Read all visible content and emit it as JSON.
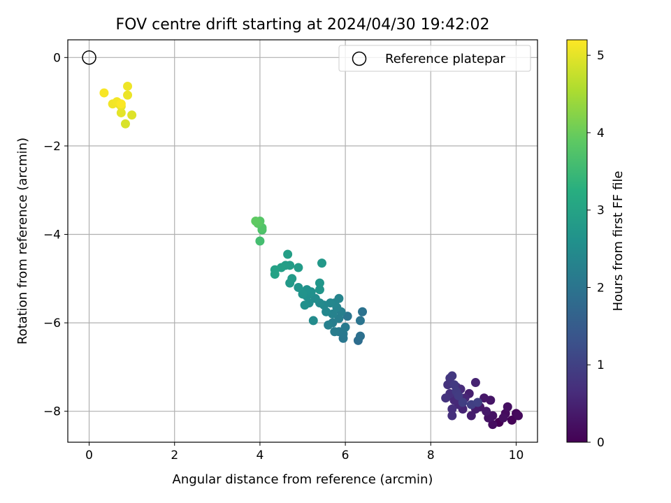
{
  "chart_data": {
    "type": "scatter",
    "title": "FOV centre drift starting at 2024/04/30 19:42:02",
    "xlabel": "Angular distance from reference (arcmin)",
    "ylabel": "Rotation from reference (arcmin)",
    "xlim": [
      -0.5,
      10.5
    ],
    "ylim": [
      -8.7,
      0.4
    ],
    "xticks": [
      0,
      2,
      4,
      6,
      8,
      10
    ],
    "yticks": [
      0,
      -2,
      -4,
      -6,
      -8
    ],
    "xtick_labels": [
      "0",
      "2",
      "4",
      "6",
      "8",
      "10"
    ],
    "ytick_labels": [
      "0",
      "−2",
      "−4",
      "−6",
      "−8"
    ],
    "grid": true,
    "colormap": "viridis",
    "colorbar": {
      "label": "Hours from first FF file",
      "range": [
        0,
        5.2
      ],
      "ticks": [
        0,
        1,
        2,
        3,
        4,
        5
      ],
      "tick_labels": [
        "0",
        "1",
        "2",
        "3",
        "4",
        "5"
      ]
    },
    "reference": {
      "x": 0,
      "y": 0,
      "legend_label": "Reference platepar",
      "marker": "open-circle",
      "color": "#000000"
    },
    "legend_position": "upper right",
    "series": [
      {
        "points": [
          {
            "x": 9.6,
            "y": -8.25,
            "t": 0.0
          },
          {
            "x": 9.9,
            "y": -8.2,
            "t": 0.05
          },
          {
            "x": 10.0,
            "y": -8.05,
            "t": 0.1
          },
          {
            "x": 10.05,
            "y": -8.1,
            "t": 0.13
          },
          {
            "x": 9.75,
            "y": -8.05,
            "t": 0.15
          },
          {
            "x": 9.45,
            "y": -8.3,
            "t": 0.18
          },
          {
            "x": 9.7,
            "y": -8.15,
            "t": 0.2
          },
          {
            "x": 9.8,
            "y": -7.9,
            "t": 0.22
          },
          {
            "x": 9.45,
            "y": -8.1,
            "t": 0.25
          },
          {
            "x": 9.35,
            "y": -8.15,
            "t": 0.27
          },
          {
            "x": 9.4,
            "y": -7.75,
            "t": 0.3
          },
          {
            "x": 9.25,
            "y": -7.7,
            "t": 0.33
          },
          {
            "x": 9.15,
            "y": -7.9,
            "t": 0.35
          },
          {
            "x": 9.3,
            "y": -8.0,
            "t": 0.37
          },
          {
            "x": 9.05,
            "y": -7.95,
            "t": 0.4
          },
          {
            "x": 8.95,
            "y": -8.1,
            "t": 0.42
          },
          {
            "x": 8.9,
            "y": -7.6,
            "t": 0.45
          },
          {
            "x": 9.05,
            "y": -7.35,
            "t": 0.5
          },
          {
            "x": 8.75,
            "y": -7.95,
            "t": 0.52
          },
          {
            "x": 8.8,
            "y": -7.7,
            "t": 0.55
          },
          {
            "x": 8.65,
            "y": -7.85,
            "t": 0.58
          },
          {
            "x": 8.55,
            "y": -7.75,
            "t": 0.6
          },
          {
            "x": 8.7,
            "y": -7.5,
            "t": 0.63
          },
          {
            "x": 8.6,
            "y": -7.45,
            "t": 0.65
          },
          {
            "x": 8.5,
            "y": -7.95,
            "t": 0.68
          },
          {
            "x": 8.5,
            "y": -8.1,
            "t": 0.7
          },
          {
            "x": 8.45,
            "y": -7.6,
            "t": 0.72
          },
          {
            "x": 8.4,
            "y": -7.4,
            "t": 0.75
          },
          {
            "x": 8.35,
            "y": -7.7,
            "t": 0.78
          },
          {
            "x": 8.45,
            "y": -7.25,
            "t": 0.8
          },
          {
            "x": 8.5,
            "y": -7.2,
            "t": 0.85
          },
          {
            "x": 8.55,
            "y": -7.4,
            "t": 0.88
          },
          {
            "x": 8.6,
            "y": -7.55,
            "t": 0.9
          },
          {
            "x": 8.65,
            "y": -7.65,
            "t": 0.92
          },
          {
            "x": 8.75,
            "y": -7.8,
            "t": 0.95
          },
          {
            "x": 8.95,
            "y": -7.85,
            "t": 0.97
          },
          {
            "x": 9.1,
            "y": -7.8,
            "t": 1.0
          },
          {
            "x": 6.3,
            "y": -6.4,
            "t": 1.85
          },
          {
            "x": 6.35,
            "y": -6.3,
            "t": 1.9
          },
          {
            "x": 6.4,
            "y": -5.75,
            "t": 1.95
          },
          {
            "x": 6.35,
            "y": -5.95,
            "t": 2.0
          },
          {
            "x": 6.05,
            "y": -5.85,
            "t": 2.02
          },
          {
            "x": 5.95,
            "y": -6.35,
            "t": 2.05
          },
          {
            "x": 5.95,
            "y": -6.25,
            "t": 2.08
          },
          {
            "x": 5.85,
            "y": -6.2,
            "t": 2.1
          },
          {
            "x": 6.0,
            "y": -6.1,
            "t": 2.12
          },
          {
            "x": 5.75,
            "y": -6.2,
            "t": 2.15
          },
          {
            "x": 5.7,
            "y": -6.0,
            "t": 2.18
          },
          {
            "x": 5.85,
            "y": -5.9,
            "t": 2.2
          },
          {
            "x": 5.9,
            "y": -5.75,
            "t": 2.22
          },
          {
            "x": 5.6,
            "y": -6.05,
            "t": 2.25
          },
          {
            "x": 5.7,
            "y": -5.8,
            "t": 2.28
          },
          {
            "x": 5.8,
            "y": -5.65,
            "t": 2.3
          },
          {
            "x": 5.85,
            "y": -5.45,
            "t": 2.32
          },
          {
            "x": 5.75,
            "y": -5.55,
            "t": 2.35
          },
          {
            "x": 5.65,
            "y": -5.55,
            "t": 2.38
          },
          {
            "x": 5.55,
            "y": -5.75,
            "t": 2.4
          },
          {
            "x": 5.5,
            "y": -5.6,
            "t": 2.42
          },
          {
            "x": 5.4,
            "y": -5.55,
            "t": 2.45
          },
          {
            "x": 5.25,
            "y": -5.95,
            "t": 2.48
          },
          {
            "x": 5.3,
            "y": -5.45,
            "t": 2.5
          },
          {
            "x": 5.15,
            "y": -5.55,
            "t": 2.52
          },
          {
            "x": 5.1,
            "y": -5.4,
            "t": 2.55
          },
          {
            "x": 5.05,
            "y": -5.6,
            "t": 2.58
          },
          {
            "x": 5.2,
            "y": -5.3,
            "t": 2.6
          },
          {
            "x": 5.1,
            "y": -5.25,
            "t": 2.62
          },
          {
            "x": 5.0,
            "y": -5.35,
            "t": 2.65
          },
          {
            "x": 4.9,
            "y": -5.2,
            "t": 2.68
          },
          {
            "x": 5.4,
            "y": -5.25,
            "t": 2.7
          },
          {
            "x": 5.4,
            "y": -5.1,
            "t": 2.72
          },
          {
            "x": 5.45,
            "y": -4.65,
            "t": 2.75
          },
          {
            "x": 4.7,
            "y": -5.1,
            "t": 2.78
          },
          {
            "x": 4.75,
            "y": -5.0,
            "t": 2.8
          },
          {
            "x": 4.9,
            "y": -4.75,
            "t": 2.82
          },
          {
            "x": 4.7,
            "y": -4.7,
            "t": 2.85
          },
          {
            "x": 4.6,
            "y": -4.7,
            "t": 2.88
          },
          {
            "x": 4.65,
            "y": -4.45,
            "t": 2.9
          },
          {
            "x": 4.5,
            "y": -4.75,
            "t": 2.92
          },
          {
            "x": 4.35,
            "y": -4.8,
            "t": 2.95
          },
          {
            "x": 4.35,
            "y": -4.9,
            "t": 2.98
          },
          {
            "x": 4.0,
            "y": -4.15,
            "t": 3.6
          },
          {
            "x": 4.05,
            "y": -3.9,
            "t": 3.7
          },
          {
            "x": 4.05,
            "y": -3.85,
            "t": 3.75
          },
          {
            "x": 4.0,
            "y": -3.7,
            "t": 3.8
          },
          {
            "x": 3.95,
            "y": -3.75,
            "t": 3.85
          },
          {
            "x": 3.9,
            "y": -3.7,
            "t": 3.9
          },
          {
            "x": 0.85,
            "y": -1.5,
            "t": 4.9
          },
          {
            "x": 1.0,
            "y": -1.3,
            "t": 4.95
          },
          {
            "x": 0.75,
            "y": -1.25,
            "t": 5.0
          },
          {
            "x": 0.75,
            "y": -1.1,
            "t": 5.02
          },
          {
            "x": 0.7,
            "y": -1.05,
            "t": 5.05
          },
          {
            "x": 0.9,
            "y": -0.85,
            "t": 5.05
          },
          {
            "x": 0.9,
            "y": -0.65,
            "t": 5.08
          },
          {
            "x": 0.55,
            "y": -1.05,
            "t": 5.1
          },
          {
            "x": 0.65,
            "y": -1.0,
            "t": 5.12
          },
          {
            "x": 0.35,
            "y": -0.8,
            "t": 5.15
          },
          {
            "x": 0.75,
            "y": -1.05,
            "t": 5.18
          }
        ]
      }
    ]
  }
}
